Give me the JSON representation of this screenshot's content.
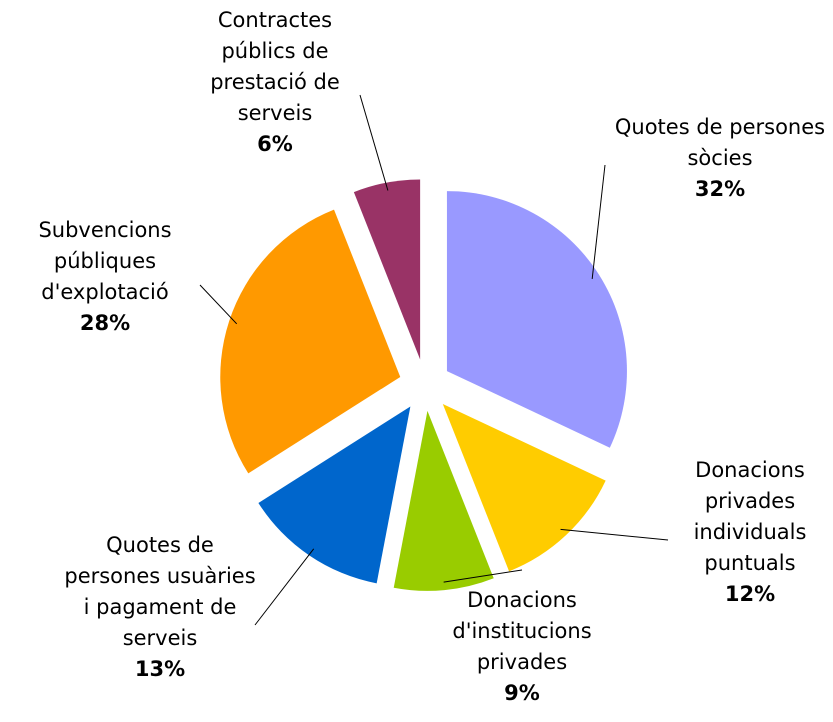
{
  "chart_data": {
    "type": "pie",
    "categories": [
      "Quotes de persones sòcies",
      "Donacions privades individuals puntuals",
      "Donacions d'institucions privades",
      "Quotes de persones usuàries i pagament de serveis",
      "Subvencions públiques d'explotació",
      "Contractes públics de prestació de serveis"
    ],
    "values": [
      32,
      12,
      9,
      13,
      28,
      6
    ],
    "value_labels": [
      "32%",
      "12%",
      "9%",
      "13%",
      "28%",
      "6%"
    ],
    "colors": [
      "#9999ff",
      "#ffcc00",
      "#99cc00",
      "#0066cc",
      "#ff9900",
      "#993366"
    ]
  }
}
